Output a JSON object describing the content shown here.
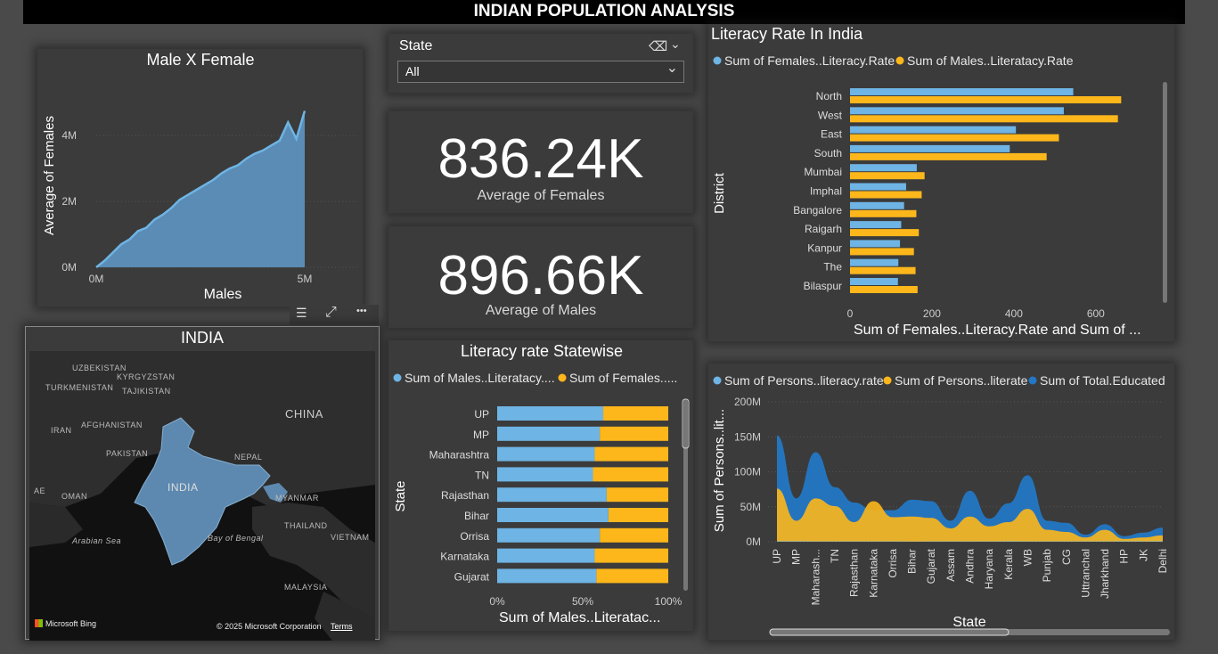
{
  "header": {
    "title": "INDIAN POPULATION ANALYSIS"
  },
  "colors": {
    "blue": "#6eb4e4",
    "orange": "#fdb71b",
    "darkblue": "#2377c4",
    "area": "#5b8cb5",
    "card": "#3b3b3b"
  },
  "slicer": {
    "label": "State",
    "value": "All"
  },
  "kpis": [
    {
      "value": "836.24K",
      "label": "Average of Females"
    },
    {
      "value": "896.66K",
      "label": "Average of Males"
    }
  ],
  "toolbar": {
    "filter": "☰",
    "focus": "⤢",
    "more": "•••"
  },
  "map": {
    "title": "INDIA",
    "labels": {
      "uzbekistan": "UZBEKISTAN",
      "kyrgyzstan": "KYRGYZSTAN",
      "turkmenistan": "TURKMENISTAN",
      "tajikistan": "TAJIKISTAN",
      "china": "CHINA",
      "iran": "IRAN",
      "afghanistan": "AFGHANISTAN",
      "pakistan": "PAKISTAN",
      "nepal": "NEPAL",
      "india": "INDIA",
      "oman": "OMAN",
      "myanmar": "MYANMAR",
      "thailand": "THAILAND",
      "vietnam": "VIETNAM",
      "arabian": "Arabian Sea",
      "bay": "Bay\nof Bengal",
      "malaysia": "MALAYSIA",
      "ae": "AE"
    },
    "bing": "Microsoft Bing",
    "copyright": "© 2025 Microsoft Corporation",
    "terms": "Terms"
  },
  "chart_data": [
    {
      "id": "male-female",
      "type": "area",
      "title": "Male X Female",
      "xlabel": "Males",
      "ylabel": "Average of Females",
      "x_ticks": [
        "0M",
        "5M"
      ],
      "y_ticks": [
        "0M",
        "2M",
        "4M"
      ],
      "xlim": [
        0,
        5
      ],
      "ylim": [
        0,
        5.6
      ],
      "x": [
        0,
        0.2,
        0.4,
        0.6,
        0.8,
        1.0,
        1.2,
        1.4,
        1.6,
        1.8,
        2.0,
        2.2,
        2.4,
        2.6,
        2.8,
        3.0,
        3.2,
        3.4,
        3.6,
        3.8,
        4.0,
        4.2,
        4.4,
        4.6,
        4.8,
        5.0
      ],
      "y": [
        0,
        0.2,
        0.45,
        0.7,
        0.85,
        1.1,
        1.2,
        1.45,
        1.6,
        1.8,
        2.05,
        2.2,
        2.35,
        2.5,
        2.65,
        2.85,
        3.0,
        3.1,
        3.3,
        3.45,
        3.55,
        3.7,
        3.85,
        4.4,
        3.9,
        4.75
      ]
    },
    {
      "id": "literacy-india",
      "type": "bar",
      "orientation": "horizontal",
      "title": "Literacy Rate In India",
      "xlabel": "Sum of Females..Literacy.Rate and Sum of ...",
      "ylabel": "District",
      "categories": [
        "North",
        "West",
        "East",
        "South",
        "Mumbai",
        "Imphal",
        "Bangalore",
        "Raigarh",
        "Kanpur",
        "The",
        "Bilaspur"
      ],
      "series": [
        {
          "name": "Sum of Females..Literacy.Rate",
          "values": [
            545,
            522,
            405,
            390,
            163,
            137,
            132,
            125,
            122,
            118,
            117
          ]
        },
        {
          "name": "Sum of Males..Literatacy.Rate",
          "values": [
            662,
            654,
            510,
            480,
            182,
            175,
            162,
            168,
            156,
            160,
            165
          ]
        }
      ],
      "xlim": [
        0,
        720
      ],
      "x_ticks": [
        "0",
        "200",
        "400",
        "600"
      ]
    },
    {
      "id": "literacy-statewise",
      "type": "bar",
      "orientation": "horizontal",
      "stacked": "percent",
      "title": "Literacy rate Statewise",
      "xlabel": "Sum of Males..Literatac...",
      "ylabel": "State",
      "categories": [
        "UP",
        "MP",
        "Maharashtra",
        "TN",
        "Rajasthan",
        "Bihar",
        "Orrisa",
        "Karnataka",
        "Gujarat"
      ],
      "series": [
        {
          "name": "Sum of Males..Literatacy....",
          "values": [
            62,
            60,
            57,
            56,
            64,
            65,
            60,
            57,
            58
          ]
        },
        {
          "name": "Sum of Females.....",
          "values": [
            38,
            40,
            43,
            44,
            36,
            35,
            40,
            43,
            42
          ]
        }
      ],
      "x_ticks": [
        "0%",
        "50%",
        "100%"
      ]
    },
    {
      "id": "persons-literacy",
      "type": "area",
      "title": "",
      "xlabel": "State",
      "ylabel": "Sum of Persons..lit...",
      "y_ticks": [
        "0M",
        "50M",
        "100M",
        "150M",
        "200M"
      ],
      "ylim": [
        0,
        200
      ],
      "categories": [
        "UP",
        "MP",
        "Maharash...",
        "TN",
        "Rajasthan",
        "Karnataka",
        "Orrisa",
        "Bihar",
        "Gujarat",
        "Assam",
        "Andhra",
        "Haryana",
        "Kerala",
        "WB",
        "Punjab",
        "CG",
        "Uttranchal",
        "Jharkhand",
        "HP",
        "JK",
        "Delhi"
      ],
      "series": [
        {
          "name": "Sum of Persons..literacy.rate",
          "values": [
            0.6,
            0.6,
            0.5,
            0.5,
            0.4,
            0.5,
            0.4,
            0.3,
            0.5,
            0.4,
            0.5,
            0.4,
            0.6,
            0.5,
            0.5,
            0.5,
            0.5,
            0.4,
            0.6,
            0.5,
            0.6
          ]
        },
        {
          "name": "Sum of Persons..literate",
          "values": [
            76,
            30,
            62,
            51,
            28,
            58,
            35,
            36,
            34,
            19,
            36,
            22,
            28,
            47,
            17,
            14,
            6,
            17,
            4,
            6,
            9
          ]
        },
        {
          "name": "Sum of Total.Educated",
          "values": [
            152,
            62,
            128,
            78,
            56,
            45,
            45,
            60,
            58,
            30,
            73,
            33,
            55,
            95,
            30,
            27,
            10,
            25,
            8,
            13,
            20
          ]
        }
      ]
    }
  ]
}
